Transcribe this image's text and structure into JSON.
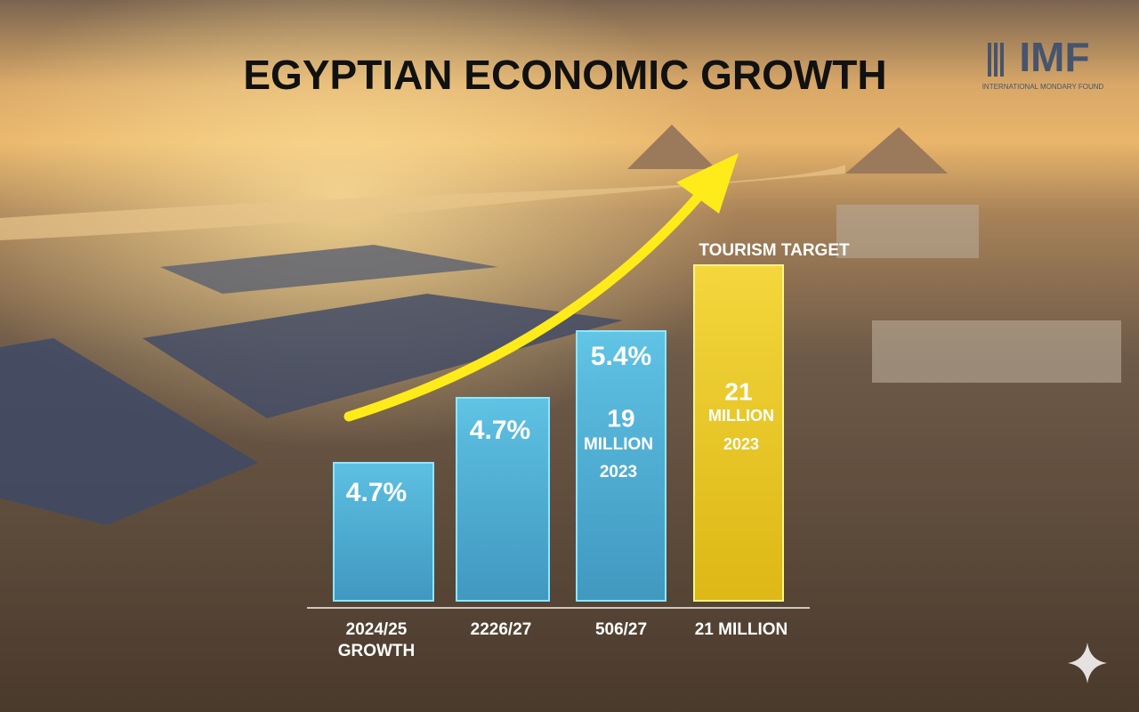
{
  "header": {
    "title": "EGYPTIAN ECONOMIC GROWTH"
  },
  "logo": {
    "mark": "IMF",
    "caption": "INTERNATIONAL MONDARY FOUND"
  },
  "annotation": "TOURISM TARGET",
  "bars": [
    {
      "lines": [
        "4.7%"
      ],
      "label": [
        "2024/25",
        "GROWTH"
      ]
    },
    {
      "lines": [
        "4.7%"
      ],
      "label": [
        "2226/27"
      ]
    },
    {
      "lines": [
        "5.4%",
        "19",
        "MILLION",
        "2023"
      ],
      "label": [
        "506/27"
      ]
    },
    {
      "lines": [
        "21",
        "MILLION",
        "2023"
      ],
      "label": [
        "21 MILLION"
      ]
    }
  ]
}
